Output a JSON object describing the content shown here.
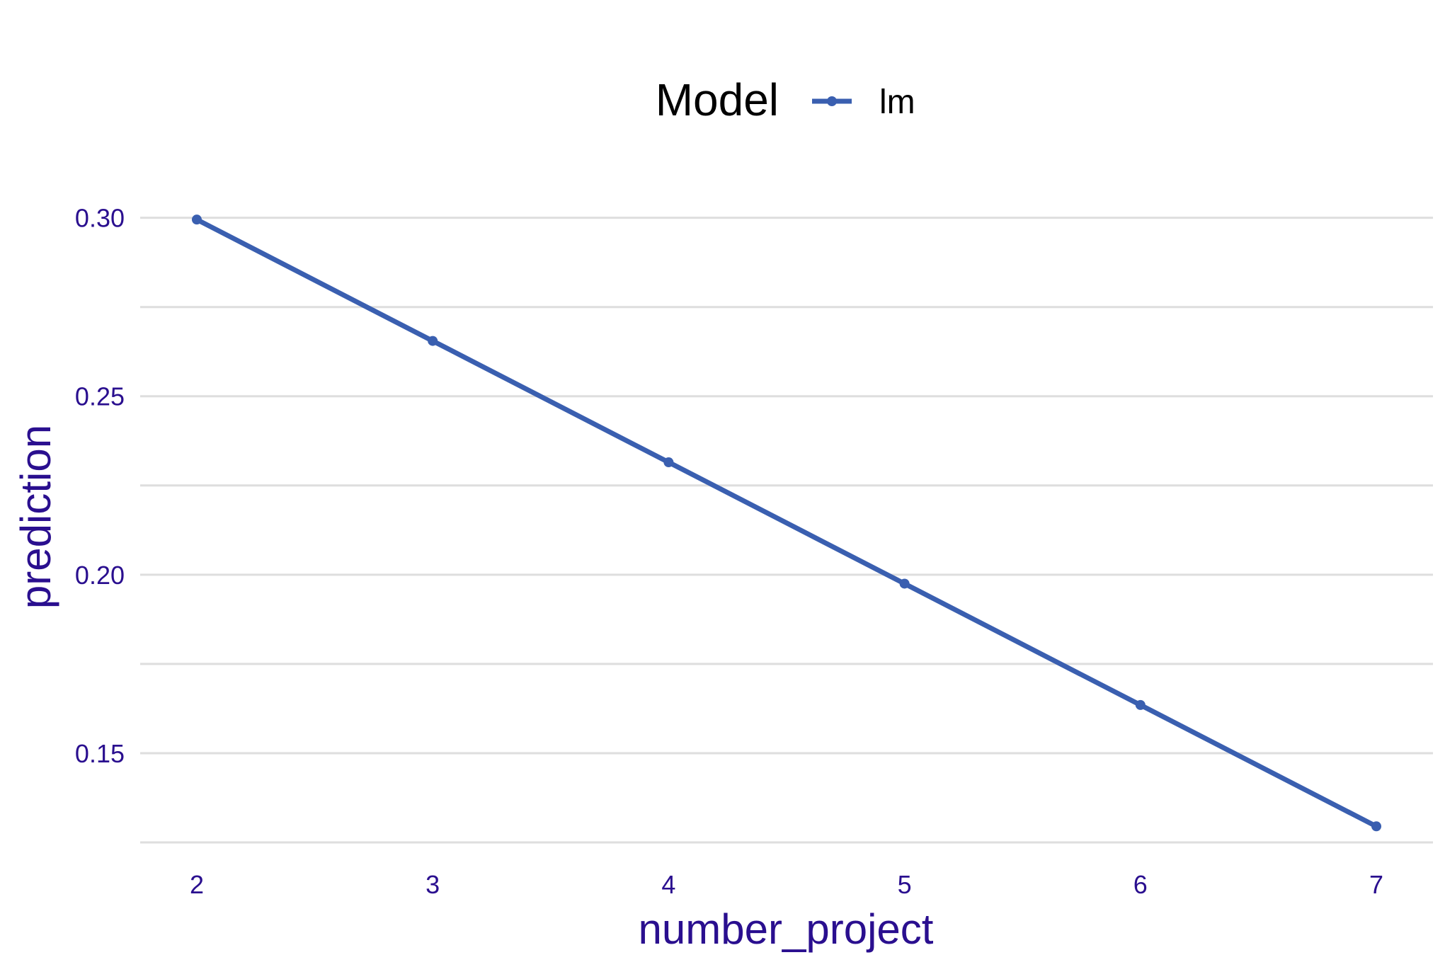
{
  "chart_data": {
    "type": "line",
    "x": [
      2,
      3,
      4,
      5,
      6,
      7
    ],
    "series": [
      {
        "name": "lm",
        "values": [
          0.2995,
          0.2655,
          0.2315,
          0.1975,
          0.1635,
          0.1295
        ],
        "color": "#3a5fb0"
      }
    ],
    "title": "",
    "xlabel": "number_project",
    "ylabel": "prediction",
    "xlim": [
      1.76,
      7.24
    ],
    "ylim": [
      0.125,
      0.3035
    ],
    "x_ticks": [
      2,
      3,
      4,
      5,
      6,
      7
    ],
    "x_tick_labels": [
      "2",
      "3",
      "4",
      "5",
      "6",
      "7"
    ],
    "y_ticks": [
      0.15,
      0.2,
      0.25,
      0.3
    ],
    "y_tick_labels": [
      "0.15",
      "0.20",
      "0.25",
      "0.30"
    ],
    "y_minor_gridlines": [
      0.125,
      0.175,
      0.225,
      0.275
    ],
    "grid": "horizontal",
    "legend": {
      "title": "Model",
      "position": "top",
      "entries": [
        "lm"
      ]
    },
    "text_color": "#2a0f8f",
    "grid_color": "#dedede"
  }
}
